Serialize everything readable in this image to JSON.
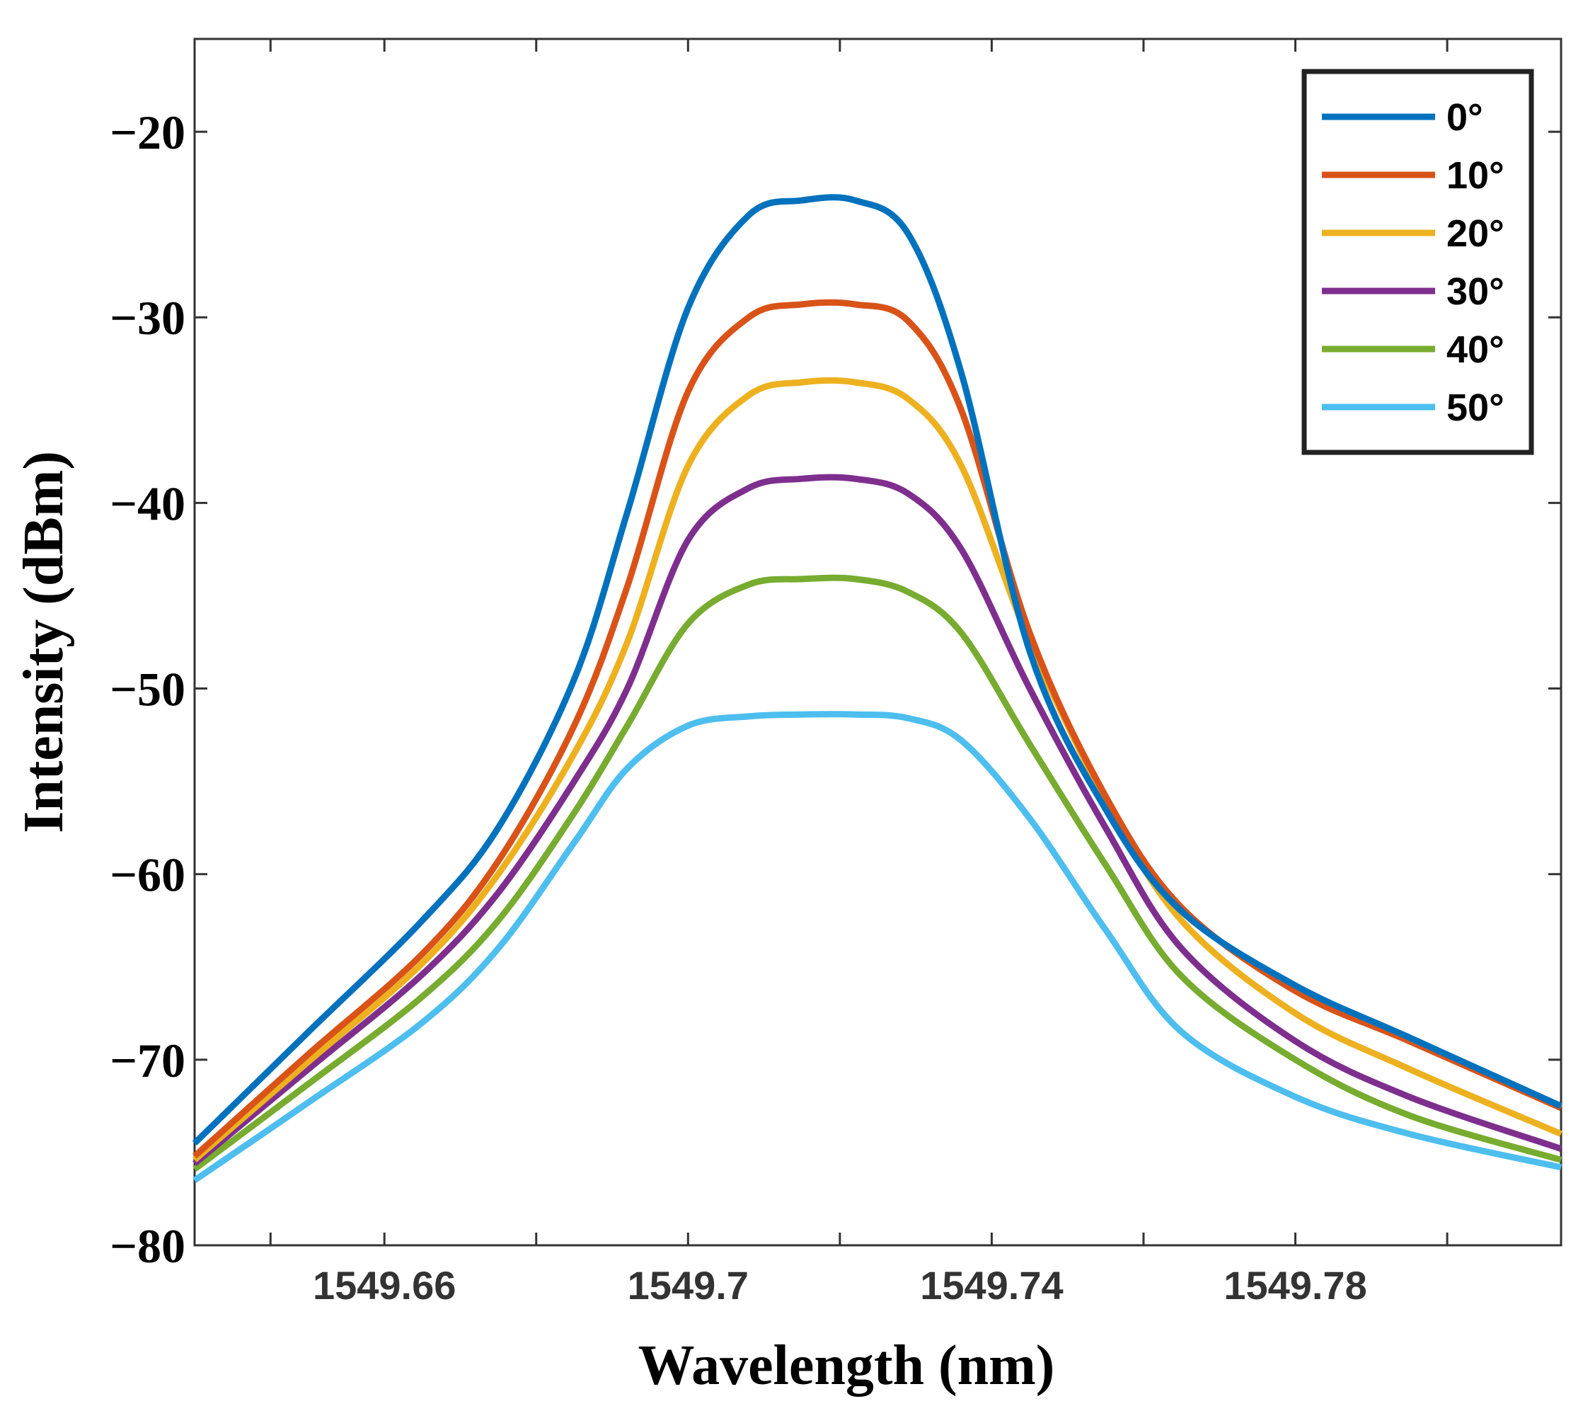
{
  "chart_data": {
    "type": "line",
    "title": "",
    "xlabel": "Wavelength (nm)",
    "ylabel": "Intensity (dBm)",
    "xlim": [
      1549.635,
      1549.815
    ],
    "ylim": [
      -80,
      -15
    ],
    "xticks": [
      1549.66,
      1549.7,
      1549.74,
      1549.78
    ],
    "xtick_labels": [
      "1549.66",
      "1549.7",
      "1549.74",
      "1549.78"
    ],
    "xticks_minor": [
      1549.645,
      1549.68,
      1549.72,
      1549.76,
      1549.8
    ],
    "yticks": [
      -20,
      -30,
      -40,
      -50,
      -60,
      -70,
      -80
    ],
    "ytick_labels": [
      "−20",
      "−30",
      "−40",
      "−50",
      "−60",
      "−70",
      "−80"
    ],
    "grid": false,
    "legend_position": "top-right",
    "x": [
      1549.635,
      1549.65,
      1549.665,
      1549.675,
      1549.685,
      1549.692,
      1549.7,
      1549.708,
      1549.715,
      1549.722,
      1549.729,
      1549.736,
      1549.745,
      1549.755,
      1549.765,
      1549.78,
      1549.795,
      1549.815
    ],
    "series": [
      {
        "name": "0°",
        "color": "#0072BD",
        "values": [
          -74.5,
          -68.5,
          -62.5,
          -57.5,
          -49.5,
          -40.5,
          -29.5,
          -24.5,
          -23.7,
          -23.7,
          -25.5,
          -33.0,
          -48.0,
          -56.5,
          -62.0,
          -66.0,
          -68.8,
          -72.5
        ]
      },
      {
        "name": "10°",
        "color": "#D95319",
        "values": [
          -75.2,
          -69.7,
          -64.3,
          -59.3,
          -52.0,
          -44.5,
          -34.0,
          -30.0,
          -29.3,
          -29.3,
          -30.2,
          -35.0,
          -47.0,
          -55.8,
          -61.8,
          -66.3,
          -69.0,
          -72.6
        ]
      },
      {
        "name": "20°",
        "color": "#EDB120",
        "values": [
          -75.4,
          -70.1,
          -64.8,
          -60.0,
          -53.5,
          -47.5,
          -38.0,
          -34.2,
          -33.5,
          -33.5,
          -34.4,
          -38.0,
          -47.5,
          -56.0,
          -62.5,
          -67.5,
          -70.5,
          -74.0
        ]
      },
      {
        "name": "30°",
        "color": "#7E2F8E",
        "values": [
          -75.6,
          -70.5,
          -65.4,
          -61.0,
          -55.0,
          -50.0,
          -42.0,
          -39.2,
          -38.7,
          -38.7,
          -39.5,
          -42.5,
          -50.0,
          -57.5,
          -64.0,
          -69.0,
          -72.0,
          -74.8
        ]
      },
      {
        "name": "40°",
        "color": "#77AC30",
        "values": [
          -75.9,
          -71.3,
          -66.6,
          -62.5,
          -56.7,
          -52.0,
          -46.5,
          -44.4,
          -44.1,
          -44.1,
          -44.8,
          -47.0,
          -53.0,
          -59.5,
          -65.5,
          -70.0,
          -73.0,
          -75.4
        ]
      },
      {
        "name": "50°",
        "color": "#4DBEEE",
        "values": [
          -76.5,
          -72.3,
          -68.0,
          -64.0,
          -58.3,
          -54.3,
          -52.0,
          -51.5,
          -51.4,
          -51.4,
          -51.6,
          -52.8,
          -57.0,
          -63.0,
          -68.5,
          -72.0,
          -74.0,
          -75.8
        ]
      }
    ]
  }
}
